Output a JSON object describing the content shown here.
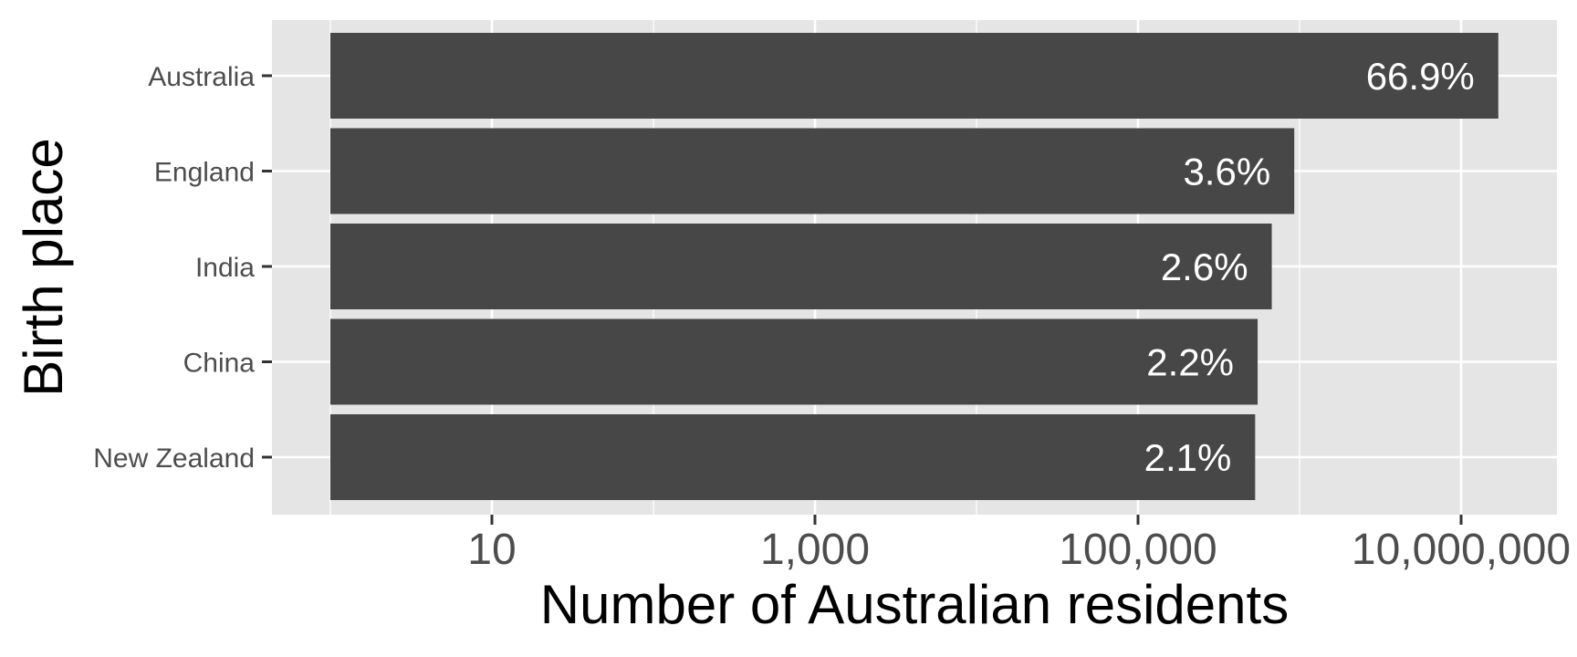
{
  "chart_data": {
    "type": "bar",
    "orientation": "horizontal",
    "xlabel": "Number of Australian residents",
    "ylabel": "Birth place",
    "x_scale": "log10",
    "xlim": [
      0.7,
      40000000
    ],
    "x_ticks": [
      10,
      1000,
      100000,
      10000000
    ],
    "x_tick_labels": [
      "10",
      "1,000",
      "100,000",
      "10,000,000"
    ],
    "grid": true,
    "categories": [
      "Australia",
      "England",
      "India",
      "China",
      "New Zealand"
    ],
    "values": [
      17000000,
      927000,
      673000,
      550000,
      531000
    ],
    "data_labels": [
      "66.9%",
      "3.6%",
      "2.6%",
      "2.2%",
      "2.1%"
    ],
    "bar_color": "#474747",
    "panel_color": "#e5e5e5"
  }
}
